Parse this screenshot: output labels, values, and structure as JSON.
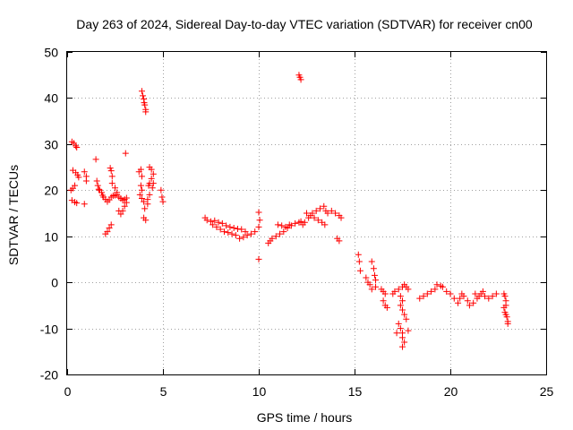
{
  "chart_data": {
    "type": "scatter",
    "title": "Day 263 of 2024, Sidereal Day-to-day VTEC variation (SDTVAR) for receiver cn00",
    "xlabel": "GPS time / hours",
    "ylabel": "SDTVAR / TECUs",
    "xlim": [
      0,
      25
    ],
    "ylim": [
      -20,
      50
    ],
    "xticks": [
      0,
      5,
      10,
      15,
      20,
      25
    ],
    "yticks": [
      -20,
      -10,
      0,
      10,
      20,
      30,
      40,
      50
    ],
    "xtick_labels": [
      "0",
      "5",
      "10",
      "15",
      "20",
      "25"
    ],
    "ytick_labels": [
      "-20",
      "-10",
      "0",
      "10",
      "20",
      "30",
      "40",
      "50"
    ],
    "grid": true,
    "marker": "+",
    "color": "#ff0000",
    "series": [
      {
        "name": "SDTVAR",
        "points": [
          [
            0.25,
            30.5
          ],
          [
            0.35,
            30.2
          ],
          [
            0.45,
            29.6
          ],
          [
            0.5,
            29.3
          ],
          [
            0.3,
            24.3
          ],
          [
            0.45,
            23.8
          ],
          [
            0.55,
            23.3
          ],
          [
            0.6,
            22.8
          ],
          [
            0.2,
            20.0
          ],
          [
            0.3,
            20.4
          ],
          [
            0.4,
            21.0
          ],
          [
            0.25,
            17.8
          ],
          [
            0.4,
            17.4
          ],
          [
            0.5,
            17.2
          ],
          [
            0.9,
            24.0
          ],
          [
            1.0,
            23.0
          ],
          [
            1.0,
            22.0
          ],
          [
            0.9,
            17.0
          ],
          [
            1.5,
            26.7
          ],
          [
            1.55,
            22.0
          ],
          [
            1.6,
            21.0
          ],
          [
            1.65,
            20.2
          ],
          [
            1.7,
            20.0
          ],
          [
            1.8,
            19.5
          ],
          [
            1.85,
            18.9
          ],
          [
            1.9,
            18.5
          ],
          [
            2.0,
            18.0
          ],
          [
            2.1,
            17.5
          ],
          [
            2.2,
            17.9
          ],
          [
            2.3,
            18.5
          ],
          [
            2.4,
            18.8
          ],
          [
            2.5,
            18.9
          ],
          [
            2.6,
            19.0
          ],
          [
            2.7,
            18.5
          ],
          [
            2.8,
            18.2
          ],
          [
            2.9,
            17.8
          ],
          [
            3.0,
            18.0
          ],
          [
            3.1,
            18.3
          ],
          [
            2.0,
            10.5
          ],
          [
            2.1,
            11.0
          ],
          [
            2.2,
            11.8
          ],
          [
            2.3,
            12.5
          ],
          [
            2.25,
            24.8
          ],
          [
            2.3,
            24.2
          ],
          [
            2.35,
            23.0
          ],
          [
            2.35,
            21.5
          ],
          [
            2.5,
            20.5
          ],
          [
            2.6,
            19.5
          ],
          [
            2.7,
            15.5
          ],
          [
            2.8,
            14.8
          ],
          [
            2.9,
            15.5
          ],
          [
            3.0,
            16.5
          ],
          [
            3.1,
            17.3
          ],
          [
            3.05,
            28.0
          ],
          [
            3.75,
            24.0
          ],
          [
            3.85,
            24.5
          ],
          [
            3.9,
            23.0
          ],
          [
            3.85,
            21.0
          ],
          [
            3.9,
            20.0
          ],
          [
            3.8,
            19.0
          ],
          [
            3.9,
            18.2
          ],
          [
            4.0,
            17.5
          ],
          [
            4.05,
            16.0
          ],
          [
            4.0,
            14.0
          ],
          [
            4.1,
            13.5
          ],
          [
            4.25,
            21.0
          ],
          [
            4.3,
            21.5
          ],
          [
            4.4,
            22.5
          ],
          [
            4.5,
            23.5
          ],
          [
            4.4,
            24.5
          ],
          [
            4.3,
            25.0
          ],
          [
            3.9,
            41.5
          ],
          [
            3.95,
            40.5
          ],
          [
            4.0,
            39.8
          ],
          [
            4.02,
            39.0
          ],
          [
            4.05,
            38.5
          ],
          [
            4.1,
            37.5
          ],
          [
            4.1,
            37.0
          ],
          [
            4.5,
            21.5
          ],
          [
            4.45,
            20.5
          ],
          [
            4.3,
            19.0
          ],
          [
            4.2,
            18.0
          ],
          [
            4.2,
            17.0
          ],
          [
            4.9,
            20.0
          ],
          [
            4.95,
            18.5
          ],
          [
            5.0,
            17.5
          ],
          [
            7.2,
            14.0
          ],
          [
            7.3,
            13.5
          ],
          [
            7.5,
            13.2
          ],
          [
            7.7,
            13.4
          ],
          [
            7.9,
            13.0
          ],
          [
            8.1,
            12.8
          ],
          [
            8.3,
            12.3
          ],
          [
            8.5,
            12.0
          ],
          [
            8.7,
            11.8
          ],
          [
            8.9,
            11.6
          ],
          [
            9.1,
            11.5
          ],
          [
            9.3,
            11.0
          ],
          [
            7.6,
            12.5
          ],
          [
            7.8,
            12.0
          ],
          [
            8.0,
            11.5
          ],
          [
            8.2,
            11.0
          ],
          [
            8.4,
            10.8
          ],
          [
            8.6,
            10.5
          ],
          [
            8.8,
            10.2
          ],
          [
            9.0,
            9.5
          ],
          [
            9.2,
            9.8
          ],
          [
            9.4,
            10.2
          ],
          [
            9.6,
            10.5
          ],
          [
            9.8,
            11.0
          ],
          [
            10.0,
            12.0
          ],
          [
            10.05,
            13.5
          ],
          [
            10.0,
            15.2
          ],
          [
            10.0,
            5.0
          ],
          [
            10.5,
            8.5
          ],
          [
            10.6,
            9.0
          ],
          [
            10.7,
            9.5
          ],
          [
            10.9,
            10.0
          ],
          [
            11.1,
            10.5
          ],
          [
            11.3,
            11.0
          ],
          [
            11.5,
            11.8
          ],
          [
            11.7,
            12.3
          ],
          [
            11.9,
            12.8
          ],
          [
            12.1,
            13.0
          ],
          [
            12.2,
            13.2
          ],
          [
            11.0,
            12.5
          ],
          [
            11.2,
            12.3
          ],
          [
            11.4,
            12.0
          ],
          [
            11.6,
            12.5
          ],
          [
            12.1,
            45.0
          ],
          [
            12.15,
            44.5
          ],
          [
            12.2,
            44.0
          ],
          [
            12.3,
            12.5
          ],
          [
            12.4,
            13.0
          ],
          [
            12.6,
            14.0
          ],
          [
            12.8,
            15.0
          ],
          [
            13.0,
            15.5
          ],
          [
            13.2,
            16.0
          ],
          [
            13.4,
            16.5
          ],
          [
            13.5,
            15.5
          ],
          [
            13.6,
            15.0
          ],
          [
            13.8,
            15.5
          ],
          [
            14.0,
            15.0
          ],
          [
            14.2,
            14.5
          ],
          [
            14.3,
            14.0
          ],
          [
            12.5,
            15.0
          ],
          [
            12.7,
            14.5
          ],
          [
            12.9,
            14.0
          ],
          [
            13.1,
            13.5
          ],
          [
            13.3,
            13.0
          ],
          [
            13.45,
            12.5
          ],
          [
            14.1,
            9.5
          ],
          [
            14.2,
            9.0
          ],
          [
            15.2,
            6.0
          ],
          [
            15.25,
            4.5
          ],
          [
            15.3,
            2.5
          ],
          [
            15.9,
            4.5
          ],
          [
            16.0,
            3.0
          ],
          [
            16.05,
            1.5
          ],
          [
            16.1,
            0.5
          ],
          [
            16.1,
            -1.0
          ],
          [
            15.6,
            1.0
          ],
          [
            15.7,
            0.0
          ],
          [
            15.8,
            -0.5
          ],
          [
            15.9,
            -1.5
          ],
          [
            16.4,
            -1.5
          ],
          [
            16.5,
            -2.0
          ],
          [
            16.6,
            -2.5
          ],
          [
            16.5,
            -4.0
          ],
          [
            16.6,
            -5.0
          ],
          [
            16.7,
            -5.5
          ],
          [
            17.0,
            -2.5
          ],
          [
            17.1,
            -2.0
          ],
          [
            17.3,
            -1.5
          ],
          [
            17.5,
            -1.0
          ],
          [
            17.6,
            -0.5
          ],
          [
            17.7,
            -1.0
          ],
          [
            17.8,
            -1.5
          ],
          [
            17.4,
            -3.0
          ],
          [
            17.5,
            -4.0
          ],
          [
            17.4,
            -5.0
          ],
          [
            17.5,
            -6.0
          ],
          [
            17.6,
            -7.0
          ],
          [
            17.7,
            -8.0
          ],
          [
            17.3,
            -9.0
          ],
          [
            17.4,
            -10.0
          ],
          [
            17.5,
            -11.0
          ],
          [
            17.5,
            -12.0
          ],
          [
            17.6,
            -13.0
          ],
          [
            17.5,
            -14.0
          ],
          [
            17.2,
            -11.0
          ],
          [
            17.8,
            -10.5
          ],
          [
            18.4,
            -3.5
          ],
          [
            18.6,
            -3.0
          ],
          [
            18.8,
            -2.5
          ],
          [
            19.0,
            -2.0
          ],
          [
            19.2,
            -1.5
          ],
          [
            19.3,
            -0.5
          ],
          [
            19.5,
            -0.8
          ],
          [
            19.6,
            -1.0
          ],
          [
            19.8,
            -2.0
          ],
          [
            20.0,
            -2.5
          ],
          [
            20.2,
            -3.5
          ],
          [
            20.4,
            -4.5
          ],
          [
            20.5,
            -3.5
          ],
          [
            20.6,
            -2.5
          ],
          [
            20.7,
            -3.0
          ],
          [
            20.9,
            -4.0
          ],
          [
            21.0,
            -5.0
          ],
          [
            21.2,
            -4.5
          ],
          [
            21.4,
            -3.5
          ],
          [
            21.5,
            -3.0
          ],
          [
            21.6,
            -2.5
          ],
          [
            21.8,
            -3.0
          ],
          [
            22.0,
            -3.5
          ],
          [
            22.2,
            -3.0
          ],
          [
            22.4,
            -2.5
          ],
          [
            21.3,
            -2.5
          ],
          [
            21.7,
            -2.0
          ],
          [
            22.8,
            -2.5
          ],
          [
            22.85,
            -3.0
          ],
          [
            22.9,
            -4.0
          ],
          [
            22.9,
            -5.0
          ],
          [
            22.85,
            -6.5
          ],
          [
            22.9,
            -7.0
          ],
          [
            22.95,
            -7.5
          ],
          [
            23.0,
            -8.5
          ],
          [
            23.0,
            -9.0
          ],
          [
            22.8,
            -5.5
          ]
        ]
      }
    ]
  }
}
